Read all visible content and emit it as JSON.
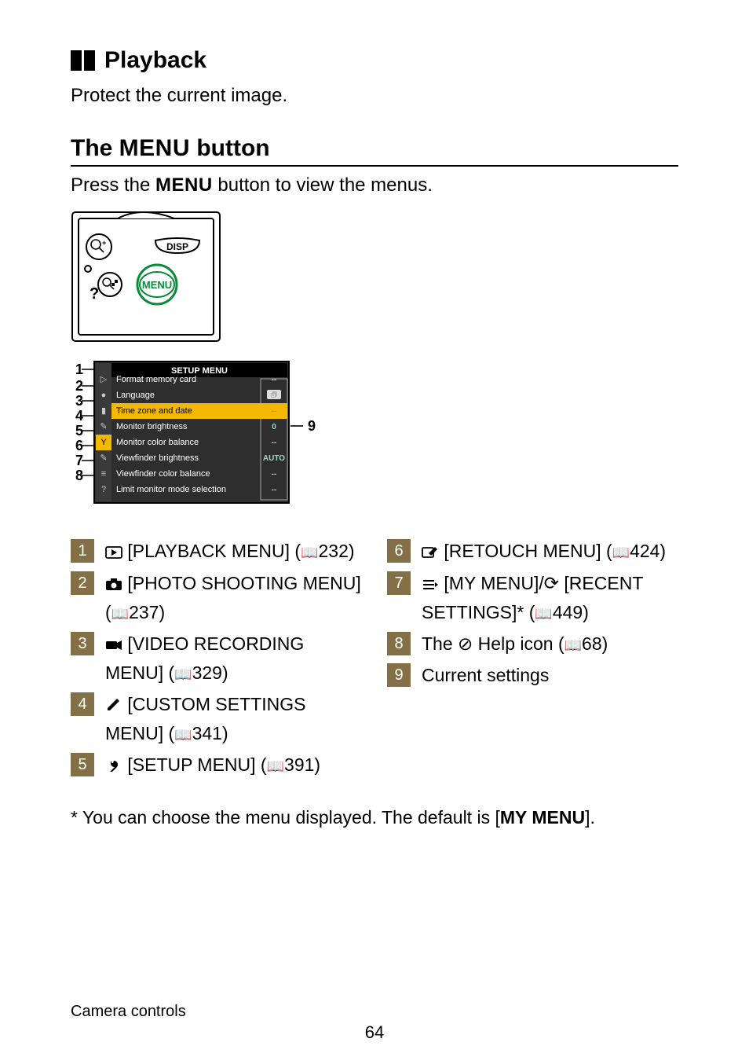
{
  "section": {
    "title": "Playback"
  },
  "intro": "Protect the current image.",
  "h2_pre": "The ",
  "h2_menu": "MENU",
  "h2_post": " button",
  "press_pre": "Press the ",
  "press_menu": "MENU",
  "press_post": " button to view the menus.",
  "camera_labels": {
    "disp": "DISP",
    "menu": "MENU"
  },
  "setup": {
    "title": "SETUP MENU",
    "markers": [
      "1",
      "2",
      "3",
      "4",
      "5",
      "6",
      "7",
      "8"
    ],
    "marker9": "9",
    "rows": [
      {
        "label": "Format memory card",
        "val": "--",
        "hl": false,
        "val_is_icon": false
      },
      {
        "label": "Language",
        "val": "icon",
        "hl": false,
        "val_is_icon": true
      },
      {
        "label": "Time zone and date",
        "val": "--",
        "hl": true,
        "val_is_icon": false
      },
      {
        "label": "Monitor brightness",
        "val": "0",
        "hl": false,
        "val_is_icon": false
      },
      {
        "label": "Monitor color balance",
        "val": "--",
        "hl": false,
        "val_is_icon": false
      },
      {
        "label": "Viewfinder brightness",
        "val": "AUTO",
        "hl": false,
        "val_is_icon": false
      },
      {
        "label": "Viewfinder color balance",
        "val": "--",
        "hl": false,
        "val_is_icon": false
      },
      {
        "label": "Limit monitor mode selection",
        "val": "--",
        "hl": false,
        "val_is_icon": false
      }
    ],
    "colors": {
      "bg": "#2e2e2e",
      "row": "#3b3b3b",
      "hl": "#f5b800",
      "side": "#3a3a3a",
      "side_hl": "#f5b800",
      "side_icon": "#c8c8c8",
      "text": "#ffffff",
      "hl_text": "#d69400",
      "val_text": "#9fd6c8"
    }
  },
  "legend_left": [
    {
      "n": "1",
      "icon": "play",
      "text": " [PLAYBACK MENU] (📖232)"
    },
    {
      "n": "2",
      "icon": "camera",
      "text": " [PHOTO SHOOTING MENU] (📖237)"
    },
    {
      "n": "3",
      "icon": "video",
      "text": " [VIDEO RECORDING MENU] (📖329)"
    },
    {
      "n": "4",
      "icon": "pencil",
      "text": " [CUSTOM SETTINGS MENU] (📖341)"
    },
    {
      "n": "5",
      "icon": "wrench",
      "text": " [SETUP MENU] (📖391)"
    }
  ],
  "legend_right": [
    {
      "n": "6",
      "icon": "retouch",
      "text": " [RETOUCH MENU] (📖424)"
    },
    {
      "n": "7",
      "icon": "mymenu",
      "text": " [MY MENU]/⟳ [RECENT SETTINGS]* (📖449)"
    },
    {
      "n": "8",
      "icon": "help",
      "text": "The ⊘ Help icon (📖68)"
    },
    {
      "n": "9",
      "icon": "",
      "text": "Current settings"
    }
  ],
  "footnote_pre": "*     You can choose the menu displayed. The default is [",
  "footnote_bold": "MY MENU",
  "footnote_post": "].",
  "footer": "Camera controls",
  "page_number": "64"
}
